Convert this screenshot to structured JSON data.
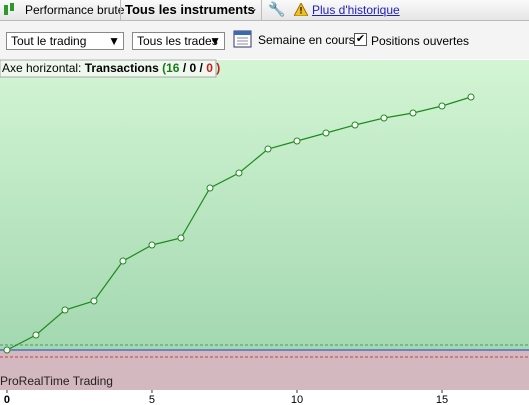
{
  "toolbar": {
    "performance": "Performance brute",
    "instruments": "Tous les instruments",
    "history_link": "Plus d'historique"
  },
  "filters": {
    "trading": "Tout le trading",
    "trades": "Tous les trades",
    "period": "Semaine en cours",
    "open_positions": "Positions ouvertes"
  },
  "chart_data": {
    "type": "line",
    "header": {
      "label": "Axe horizontal:",
      "axis_name": "Transactions",
      "open": "(",
      "wins": "16",
      "sep1": "/",
      "neutral": "0",
      "sep2": "/",
      "losses": "0",
      "close": ")"
    },
    "watermark": "ProRealTime Trading",
    "x": [
      0,
      1,
      2,
      3,
      4,
      5,
      6,
      7,
      8,
      9,
      10,
      11,
      12,
      13,
      14,
      15,
      16
    ],
    "series": [
      {
        "color": "#1e8a1e",
        "values": [
          0,
          15,
          40,
          49,
          89,
          105,
          112,
          162,
          177,
          201,
          209,
          217,
          225,
          232,
          237,
          244,
          253
        ]
      }
    ],
    "xlim": [
      -0.24,
      18
    ],
    "xticks": [
      0,
      5,
      10,
      15
    ],
    "ylim": [
      -40,
      290
    ]
  }
}
